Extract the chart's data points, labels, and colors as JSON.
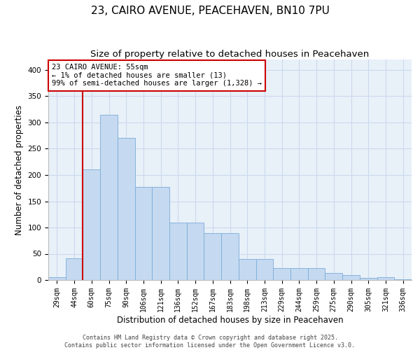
{
  "title_line1": "23, CAIRO AVENUE, PEACEHAVEN, BN10 7PU",
  "title_line2": "Size of property relative to detached houses in Peacehaven",
  "xlabel": "Distribution of detached houses by size in Peacehaven",
  "ylabel": "Number of detached properties",
  "categories": [
    "29sqm",
    "44sqm",
    "60sqm",
    "75sqm",
    "90sqm",
    "106sqm",
    "121sqm",
    "136sqm",
    "152sqm",
    "167sqm",
    "183sqm",
    "198sqm",
    "213sqm",
    "229sqm",
    "244sqm",
    "259sqm",
    "275sqm",
    "290sqm",
    "305sqm",
    "321sqm",
    "336sqm"
  ],
  "values": [
    5,
    42,
    210,
    315,
    270,
    178,
    178,
    110,
    110,
    90,
    90,
    40,
    40,
    23,
    23,
    23,
    13,
    10,
    4,
    5,
    2
  ],
  "bar_color": "#c5d9f0",
  "bar_edge_color": "#7aadda",
  "property_line_x": 1.5,
  "annotation_text": "23 CAIRO AVENUE: 55sqm\n← 1% of detached houses are smaller (13)\n99% of semi-detached houses are larger (1,328) →",
  "annotation_box_color": "#ffffff",
  "annotation_box_edge": "#cc0000",
  "property_line_color": "#cc0000",
  "grid_color": "#c8d8ec",
  "bg_color": "#e8f0f8",
  "footer_line1": "Contains HM Land Registry data © Crown copyright and database right 2025.",
  "footer_line2": "Contains public sector information licensed under the Open Government Licence v3.0.",
  "ylim": [
    0,
    420
  ],
  "yticks": [
    0,
    50,
    100,
    150,
    200,
    250,
    300,
    350,
    400
  ],
  "title_fontsize": 11,
  "subtitle_fontsize": 9.5,
  "tick_fontsize": 7,
  "label_fontsize": 8.5,
  "annotation_fontsize": 7.5,
  "footer_fontsize": 6
}
